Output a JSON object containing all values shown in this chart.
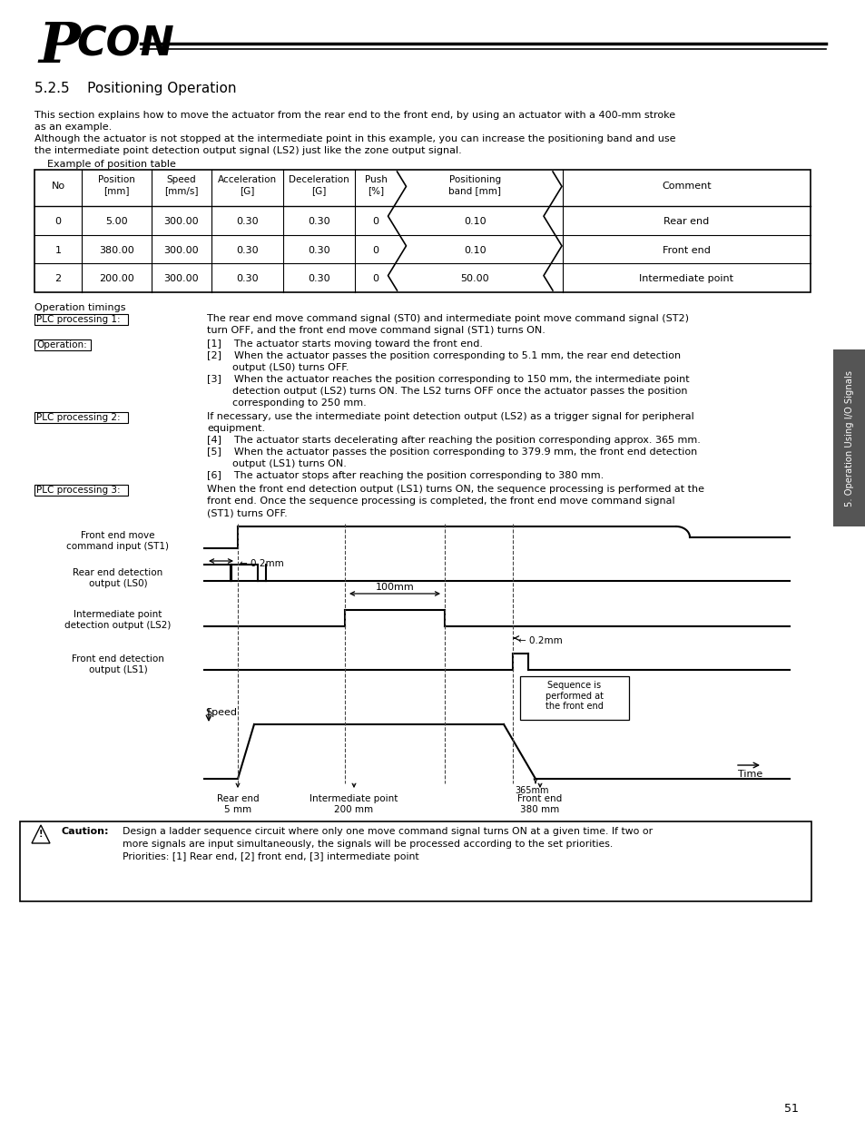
{
  "section_title": "5.2.5    Positioning Operation",
  "intro_text1": "This section explains how to move the actuator from the rear end to the front end, by using an actuator with a 400-mm stroke",
  "intro_text2": "as an example.",
  "intro_text3": "Although the actuator is not stopped at the intermediate point in this example, you can increase the positioning band and use",
  "intro_text4": "the intermediate point detection output signal (LS2) just like the zone output signal.",
  "intro_text5": "    Example of position table",
  "op_timings_title": "Operation timings",
  "caution_text_line1": "Design a ladder sequence circuit where only one move command signal turns ON at a given time. If two or",
  "caution_text_line2": "more signals are input simultaneously, the signals will be processed according to the set priorities.",
  "caution_text_line3": "Priorities: [1] Rear end, [2] front end, [3] intermediate point",
  "page_number": "51",
  "side_label": "5. Operation Using I/O Signals"
}
